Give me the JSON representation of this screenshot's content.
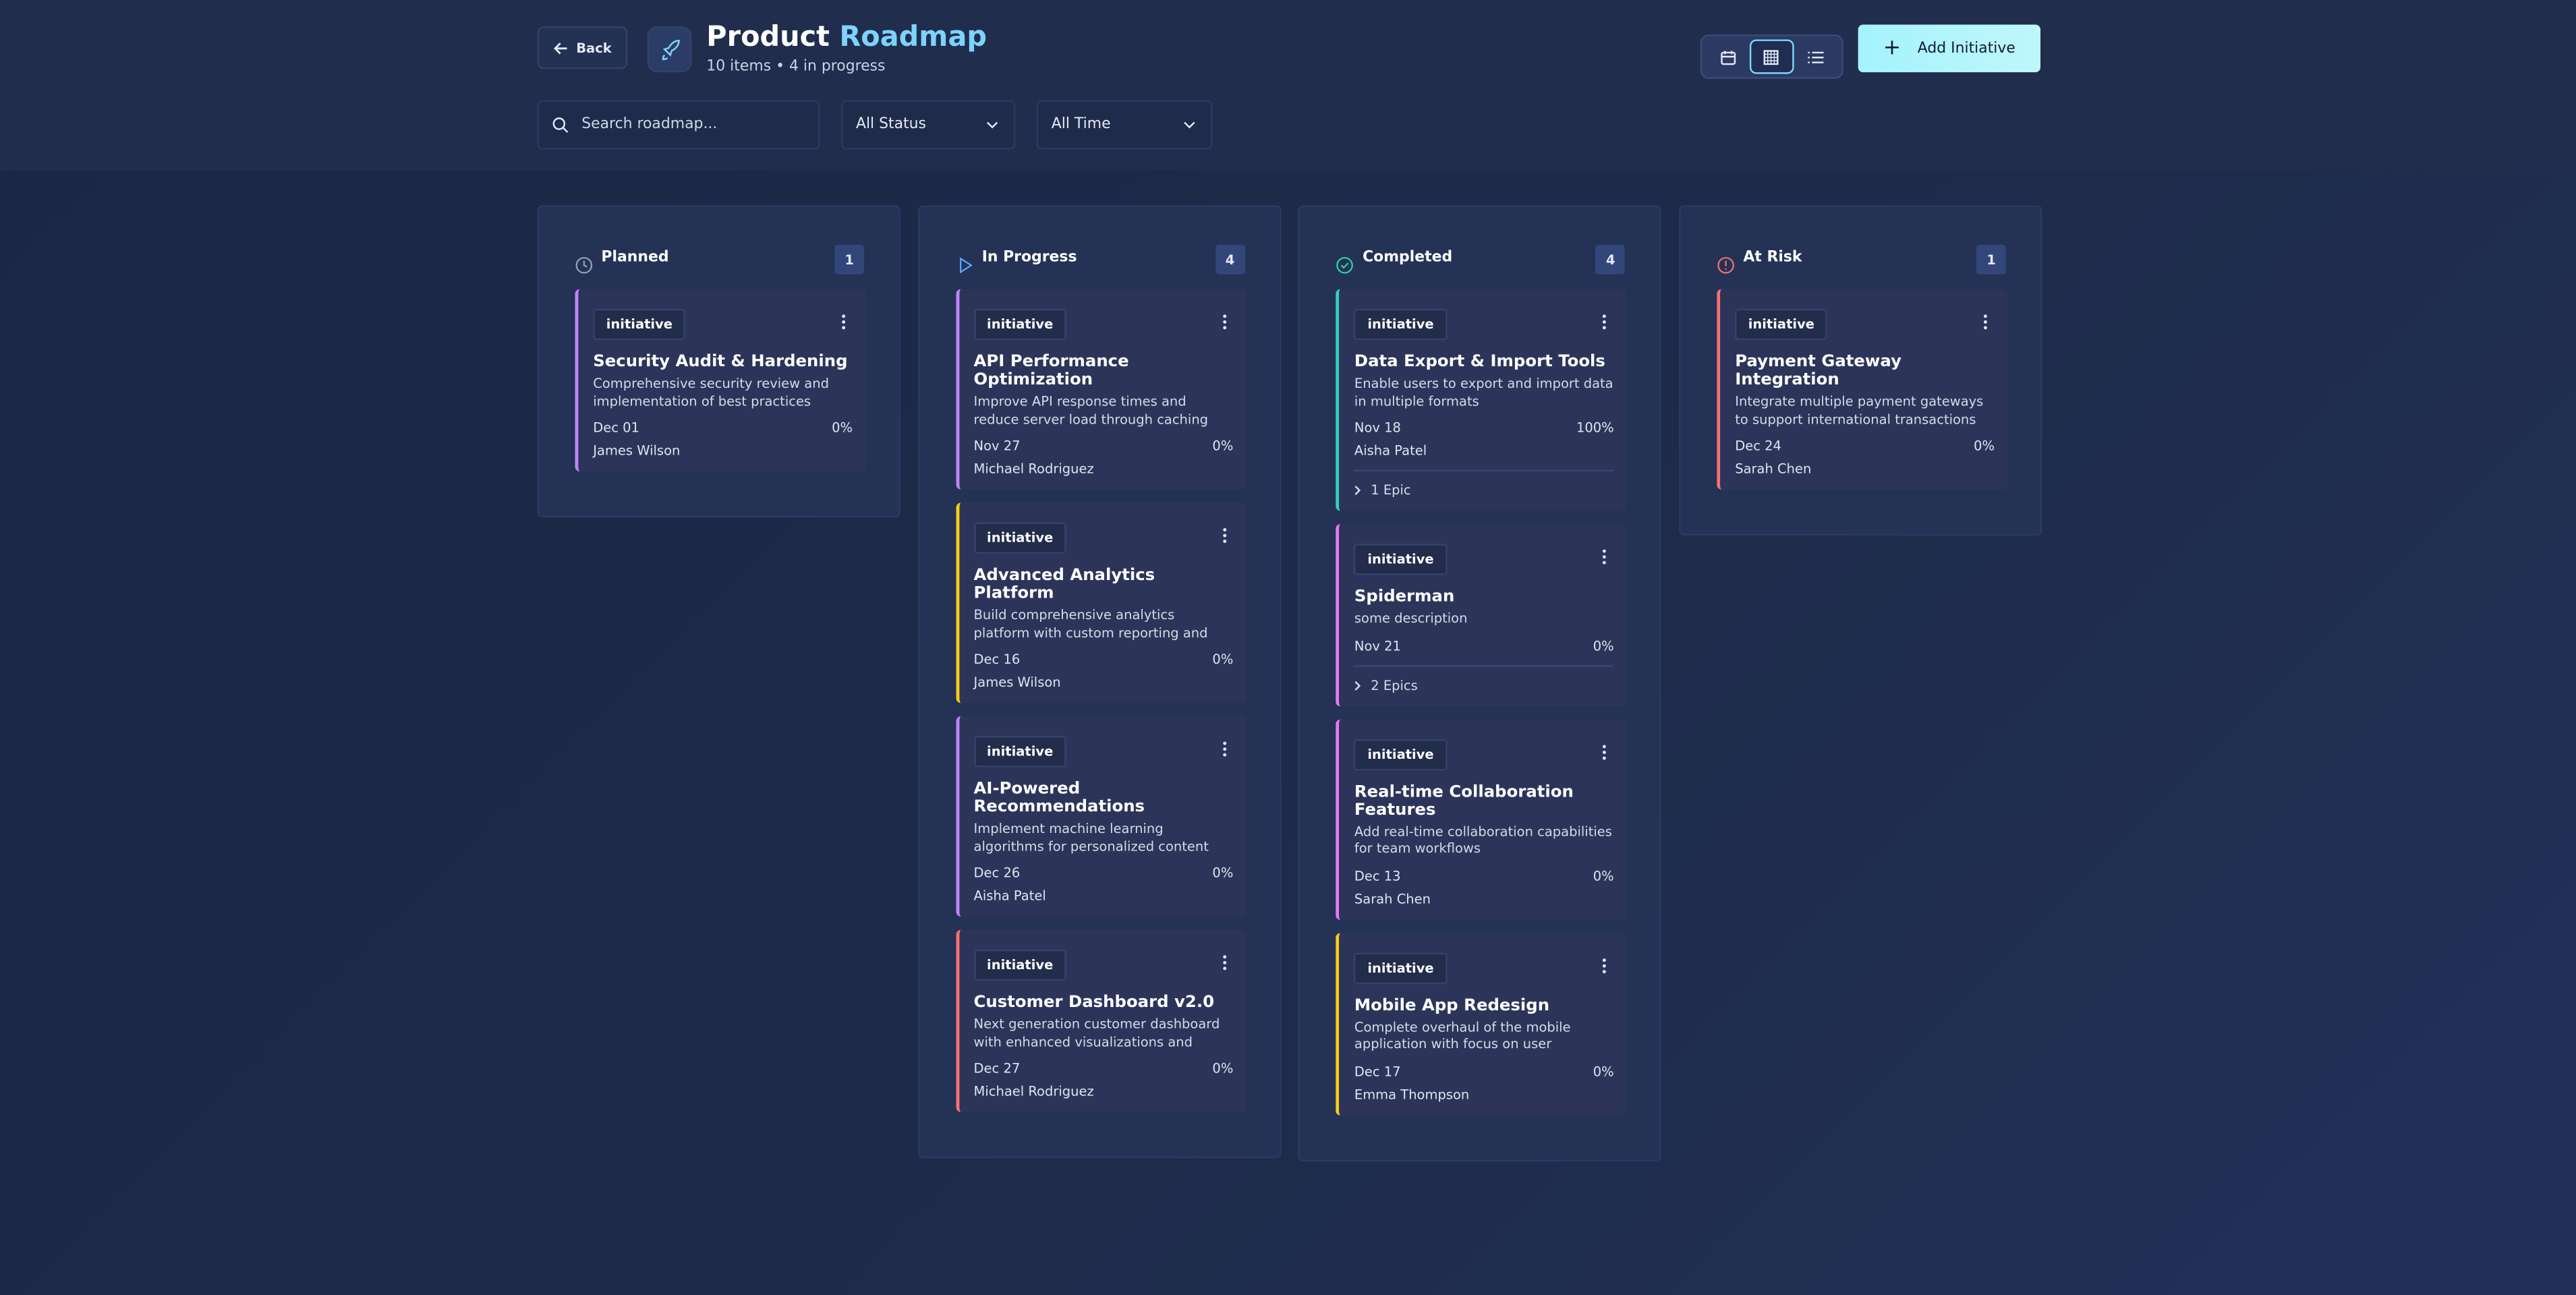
{
  "header": {
    "back": "Back",
    "title_part1": "Product",
    "title_part2": "Roadmap",
    "subtitle": "10 items • 4 in progress",
    "add_button": "Add Initiative"
  },
  "filters": {
    "search_placeholder": "Search roadmap...",
    "status": "All Status",
    "time": "All Time"
  },
  "columns": [
    {
      "name": "Planned",
      "count": "1",
      "cards": [
        {
          "tag": "initiative",
          "title": "Security Audit & Hardening",
          "description": "Comprehensive security review and implementation of best practices",
          "date": "Dec 01",
          "progress": "0%",
          "owner": "James Wilson",
          "accent": "#c084fc"
        }
      ]
    },
    {
      "name": "In Progress",
      "count": "4",
      "cards": [
        {
          "tag": "initiative",
          "title": "API Performance Optimization",
          "description": "Improve API response times and reduce server load through caching and...",
          "date": "Nov 27",
          "progress": "0%",
          "owner": "Michael Rodriguez",
          "accent": "#c084fc"
        },
        {
          "tag": "initiative",
          "title": "Advanced Analytics Platform",
          "description": "Build comprehensive analytics platform with custom reporting and data visualization",
          "date": "Dec 16",
          "progress": "0%",
          "owner": "James Wilson",
          "accent": "#facc15"
        },
        {
          "tag": "initiative",
          "title": "AI-Powered Recommendations",
          "description": "Implement machine learning algorithms for personalized content recommendations",
          "date": "Dec 26",
          "progress": "0%",
          "owner": "Aisha Patel",
          "accent": "#c084fc"
        },
        {
          "tag": "initiative",
          "title": "Customer Dashboard v2.0",
          "description": "Next generation customer dashboard with enhanced visualizations and insights",
          "date": "Dec 27",
          "progress": "0%",
          "owner": "Michael Rodriguez",
          "accent": "#f87171"
        }
      ]
    },
    {
      "name": "Completed",
      "count": "4",
      "cards": [
        {
          "tag": "initiative",
          "title": "Data Export & Import Tools",
          "description": "Enable users to export and import data in multiple formats",
          "date": "Nov 18",
          "progress": "100%",
          "owner": "Aisha Patel",
          "epics": "1 Epic",
          "accent": "#2dd4bf"
        },
        {
          "tag": "initiative",
          "title": "Spiderman",
          "description": "some description",
          "date": "Nov 21",
          "progress": "0%",
          "epics": "2 Epics",
          "accent": "#e879f9"
        },
        {
          "tag": "initiative",
          "title": "Real-time Collaboration Features",
          "description": "Add real-time collaboration capabilities for team workflows",
          "date": "Dec 13",
          "progress": "0%",
          "owner": "Sarah Chen",
          "accent": "#e879f9"
        },
        {
          "tag": "initiative",
          "title": "Mobile App Redesign",
          "description": "Complete overhaul of the mobile application with focus on user experience...",
          "date": "Dec 17",
          "progress": "0%",
          "owner": "Emma Thompson",
          "accent": "#facc15"
        }
      ]
    },
    {
      "name": "At Risk",
      "count": "1",
      "cards": [
        {
          "tag": "initiative",
          "title": "Payment Gateway Integration",
          "description": "Integrate multiple payment gateways to support international transactions",
          "date": "Dec 24",
          "progress": "0%",
          "owner": "Sarah Chen",
          "accent": "#f87171"
        }
      ]
    }
  ]
}
